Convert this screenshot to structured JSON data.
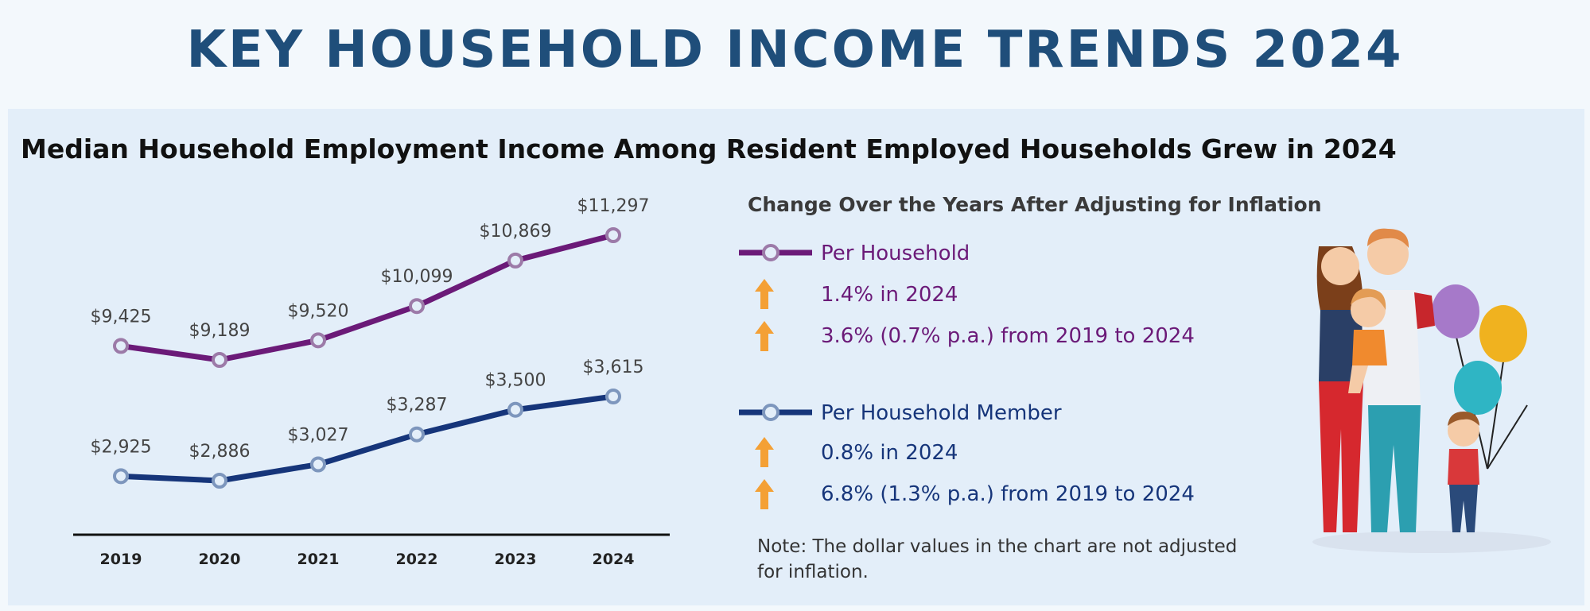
{
  "title": "KEY HOUSEHOLD INCOME TRENDS 2024",
  "subtitle": "Median Household Employment Income Among Resident Employed Households Grew in 2024",
  "colors": {
    "household": "#6b1a78",
    "member": "#16357a",
    "arrow": "#f4a035",
    "title": "#1f4e7a"
  },
  "chart_data": {
    "type": "line",
    "categories": [
      "2019",
      "2020",
      "2021",
      "2022",
      "2023",
      "2024"
    ],
    "series": [
      {
        "name": "Per Household",
        "values": [
          9425,
          9189,
          9520,
          10099,
          10869,
          11297
        ],
        "labels": [
          "$9,425",
          "$9,189",
          "$9,520",
          "$10,099",
          "$10,869",
          "$11,297"
        ]
      },
      {
        "name": "Per Household Member",
        "values": [
          2925,
          2886,
          3027,
          3287,
          3500,
          3615
        ],
        "labels": [
          "$2,925",
          "$2,886",
          "$3,027",
          "$3,287",
          "$3,500",
          "$3,615"
        ]
      }
    ]
  },
  "legend": {
    "title": "Change Over the Years After Adjusting for Inflation",
    "household": {
      "label": "Per Household",
      "stat1": "1.4% in 2024",
      "stat2": "3.6% (0.7% p.a.) from 2019 to 2024"
    },
    "member": {
      "label": "Per Household Member",
      "stat1": "0.8% in 2024",
      "stat2": "6.8% (1.3% p.a.) from 2019 to 2024"
    },
    "icons": [
      "up-arrow-icon"
    ]
  },
  "note": "Note: The dollar values in the chart are not adjusted for inflation."
}
